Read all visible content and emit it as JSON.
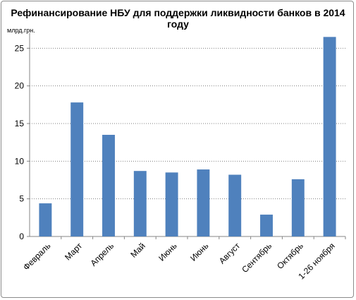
{
  "chart_data": {
    "type": "bar",
    "title": "Рефинансирование НБУ для поддержки ликвидности банков в 2014 году",
    "unit_label": "млрд.грн.",
    "categories": [
      "Февраль",
      "Март",
      "Апрель",
      "Май",
      "Июнь",
      "Июнь",
      "Август",
      "Сентябрь",
      "Октябрь",
      "1-26 ноября"
    ],
    "values": [
      4.4,
      17.8,
      13.5,
      8.7,
      8.5,
      8.9,
      8.2,
      2.9,
      7.6,
      26.5
    ],
    "ylim": [
      0,
      30
    ],
    "yticks": [
      0,
      5,
      10,
      15,
      20,
      25
    ],
    "grid": true,
    "bar_color": "#4f81bd",
    "grid_color": "#7f7f7f"
  }
}
